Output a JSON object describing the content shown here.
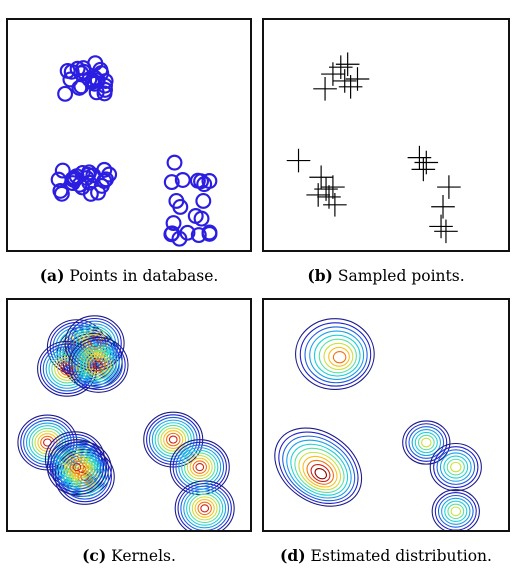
{
  "figure": {
    "panels": [
      {
        "id": "a",
        "tag": "(a)",
        "caption": "Points in database."
      },
      {
        "id": "b",
        "tag": "(b)",
        "caption": "Sampled points."
      },
      {
        "id": "c",
        "tag": "(c)",
        "caption": "Kernels."
      },
      {
        "id": "d",
        "tag": "(d)",
        "caption": "Estimated distribution."
      }
    ]
  },
  "colors": {
    "circles": "#2b1ee0",
    "crosses": "#000000",
    "contour_low": "#1a1a8c",
    "contour_high": "#8b0000"
  }
}
